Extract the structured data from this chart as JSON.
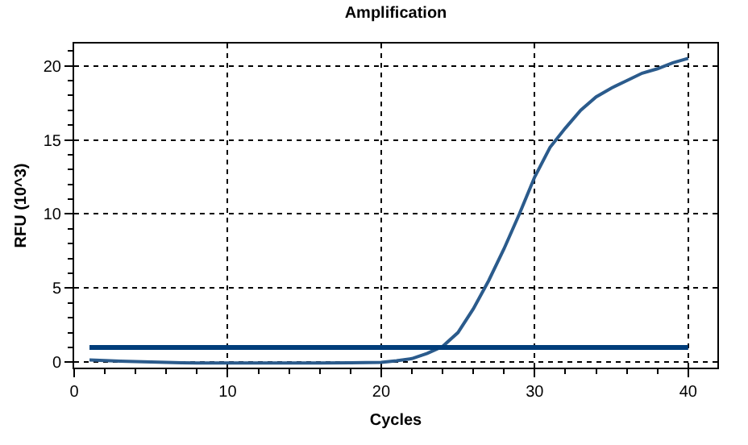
{
  "chart_data": {
    "type": "line",
    "title": "Amplification",
    "xlabel": "Cycles",
    "ylabel": "RFU (10^3)",
    "x": [
      1,
      2,
      3,
      4,
      5,
      6,
      7,
      8,
      10,
      12,
      14,
      16,
      18,
      20,
      21,
      22,
      23,
      24,
      25,
      26,
      27,
      28,
      29,
      30,
      31,
      32,
      33,
      34,
      35,
      36,
      37,
      38,
      39,
      40
    ],
    "series": [
      {
        "color": "#2b5b8c",
        "values": [
          0.15,
          0.12,
          0.08,
          0.05,
          0.02,
          0,
          -0.03,
          -0.05,
          -0.05,
          -0.05,
          -0.05,
          -0.05,
          -0.03,
          0,
          0.1,
          0.25,
          0.6,
          1.07,
          2,
          3.6,
          5.5,
          7.65,
          10,
          12.5,
          14.5,
          15.8,
          17,
          17.9,
          18.5,
          19,
          19.5,
          19.8,
          20.2,
          20.5
        ]
      }
    ],
    "ref_lines": [
      {
        "axis": "y",
        "value": 1,
        "color": "#003d7a"
      }
    ],
    "xlim": [
      0,
      41.9
    ],
    "ylim": [
      -0.36,
      21.5
    ],
    "xticks": [
      0,
      {
        "value": 2,
        "label": null
      },
      {
        "value": 4,
        "label": null
      },
      {
        "value": 6,
        "label": null
      },
      {
        "value": 8,
        "label": null
      },
      10,
      {
        "value": 12,
        "label": null
      },
      {
        "value": 14,
        "label": null
      },
      {
        "value": 16,
        "label": null
      },
      {
        "value": 18,
        "label": null
      },
      20,
      {
        "value": 22,
        "label": null
      },
      {
        "value": 24,
        "label": null
      },
      {
        "value": 26,
        "label": null
      },
      {
        "value": 28,
        "label": null
      },
      30,
      {
        "value": 32,
        "label": null
      },
      {
        "value": 34,
        "label": null
      },
      {
        "value": 36,
        "label": null
      },
      {
        "value": 38,
        "label": null
      },
      40
    ],
    "yticks": [
      0,
      {
        "value": 1,
        "label": null
      },
      {
        "value": 2,
        "label": null
      },
      {
        "value": 3,
        "label": null
      },
      {
        "value": 4,
        "label": null
      },
      5,
      {
        "value": 6,
        "label": null
      },
      {
        "value": 7,
        "label": null
      },
      {
        "value": 8,
        "label": null
      },
      {
        "value": 9,
        "label": null
      },
      10,
      {
        "value": 11,
        "label": null
      },
      {
        "value": 12,
        "label": null
      },
      {
        "value": 13,
        "label": null
      },
      {
        "value": 14,
        "label": null
      },
      15,
      {
        "value": 16,
        "label": null
      },
      {
        "value": 17,
        "label": null
      },
      {
        "value": 18,
        "label": null
      },
      {
        "value": 19,
        "label": null
      },
      20,
      {
        "value": 21,
        "label": null
      }
    ],
    "grid": true,
    "marker": "none",
    "line_style": "solid"
  }
}
